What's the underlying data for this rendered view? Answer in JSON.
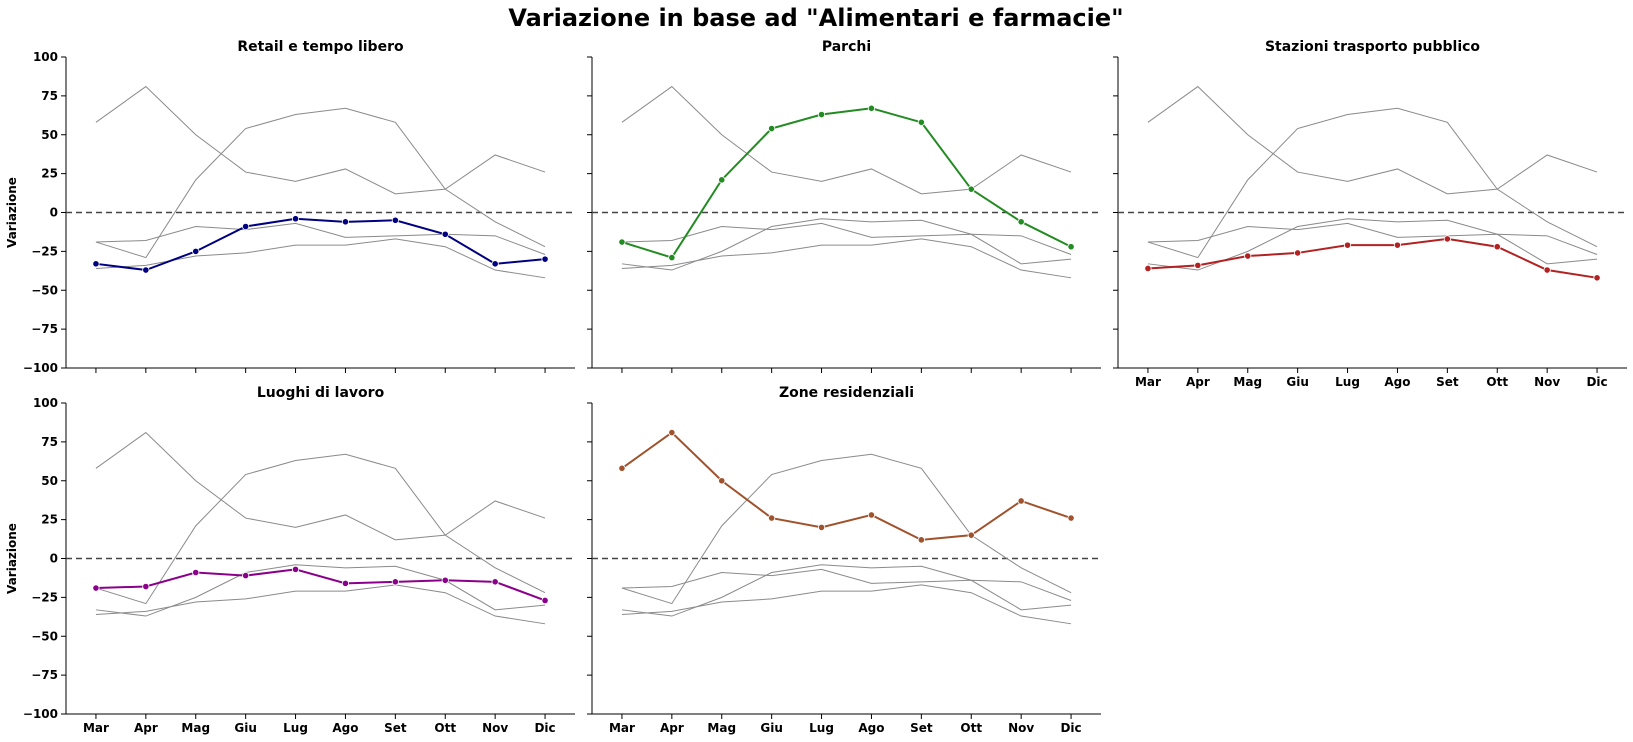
{
  "figure": {
    "title": "Variazione in base ad \"Alimentari e farmacie\""
  },
  "chart_data": {
    "type": "line",
    "categories": [
      "Mar",
      "Apr",
      "Mag",
      "Giu",
      "Lug",
      "Ago",
      "Set",
      "Ott",
      "Nov",
      "Dic"
    ],
    "ylim": [
      -100,
      100
    ],
    "yticks": [
      100,
      75,
      50,
      25,
      0,
      -25,
      -50,
      -75,
      -100
    ],
    "ylabel": "Variazione",
    "reference_line": 0,
    "grid": false,
    "series": [
      {
        "name": "Retail e tempo libero",
        "color": "#000080",
        "values": [
          -33,
          -37,
          -25,
          -9,
          -4,
          -6,
          -5,
          -14,
          -33,
          -30
        ]
      },
      {
        "name": "Parchi",
        "color": "#228B22",
        "values": [
          -19,
          -29,
          21,
          54,
          63,
          67,
          58,
          15,
          -6,
          -22
        ]
      },
      {
        "name": "Stazioni trasporto pubblico",
        "color": "#B22222",
        "values": [
          -36,
          -34,
          -28,
          -26,
          -21,
          -21,
          -17,
          -22,
          -37,
          -42
        ]
      },
      {
        "name": "Luoghi di lavoro",
        "color": "#8B008B",
        "values": [
          -19,
          -18,
          -9,
          -11,
          -7,
          -16,
          -15,
          -14,
          -15,
          -27
        ]
      },
      {
        "name": "Zone residenziali",
        "color": "#A0522D",
        "values": [
          58,
          81,
          50,
          26,
          20,
          28,
          12,
          15,
          37,
          26
        ]
      }
    ]
  }
}
